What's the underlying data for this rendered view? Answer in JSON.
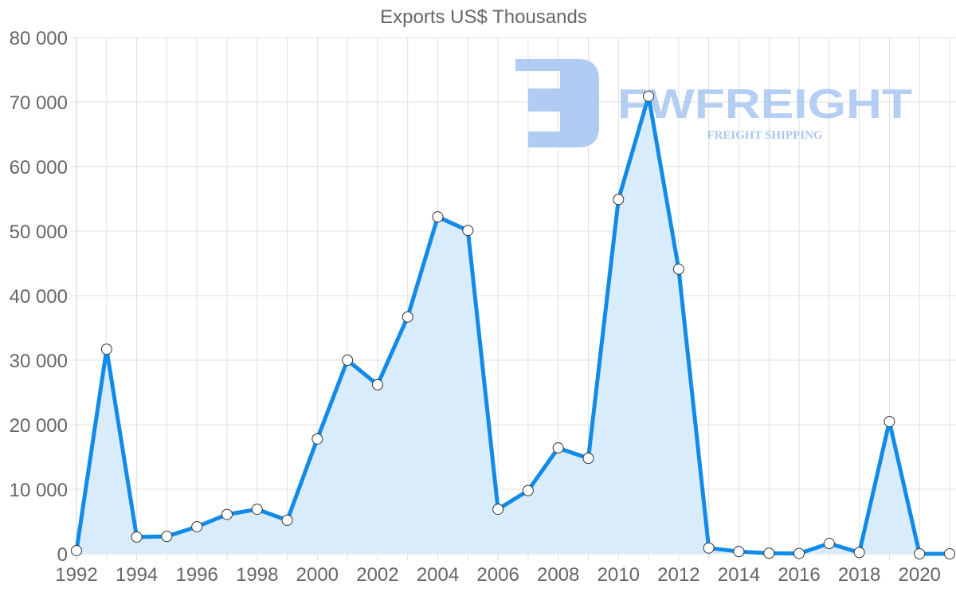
{
  "chart_data": {
    "type": "area",
    "title": "Exports US$ Thousands",
    "xlabel": "",
    "ylabel": "",
    "x": [
      1992,
      1993,
      1994,
      1995,
      1996,
      1997,
      1998,
      1999,
      2000,
      2001,
      2002,
      2003,
      2004,
      2005,
      2006,
      2007,
      2008,
      2009,
      2010,
      2011,
      2012,
      2013,
      2014,
      2015,
      2016,
      2017,
      2018,
      2019,
      2020,
      2021
    ],
    "series": [
      {
        "name": "Exports US$ Thousands",
        "values": [
          500,
          31700,
          2600,
          2700,
          4200,
          6100,
          6900,
          5200,
          17800,
          30000,
          26200,
          36700,
          52200,
          50100,
          6900,
          9800,
          16400,
          14800,
          54900,
          70900,
          44100,
          900,
          350,
          100,
          50,
          1600,
          200,
          20500,
          0,
          0
        ]
      }
    ],
    "x_tick_labels": [
      "1992",
      "1994",
      "1996",
      "1998",
      "2000",
      "2002",
      "2004",
      "2006",
      "2008",
      "2010",
      "2012",
      "2014",
      "2016",
      "2018",
      "2020"
    ],
    "y_tick_labels": [
      "0",
      "10 000",
      "20 000",
      "30 000",
      "40 000",
      "50 000",
      "60 000",
      "70 000",
      "80 000"
    ],
    "ylim": [
      0,
      80000
    ],
    "grid": true,
    "legend": "none",
    "colors": {
      "line": "#118ae8",
      "fill": "#d7ebfc",
      "point_fill": "#ffffff",
      "point_stroke": "#333333",
      "grid": "#e0e0e0",
      "text": "#666666"
    }
  },
  "watermark": {
    "brand": "FWFREIGHT",
    "tagline": "FREIGHT SHIPPING",
    "color": "#a9c6f2"
  }
}
